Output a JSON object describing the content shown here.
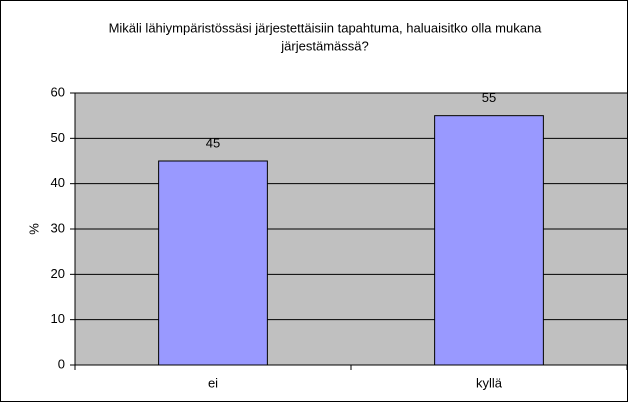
{
  "chart_data": {
    "type": "bar",
    "title": [
      "Mikäli lähiympäristössäsi järjestettäisiin tapahtuma, haluaisitko olla mukana",
      "järjestämässä?"
    ],
    "y_label": "%",
    "categories": [
      "ei",
      "kyllä"
    ],
    "values": [
      45,
      55
    ],
    "color": "#9999ff",
    "ylim": [
      0,
      60
    ],
    "yticks": [
      0,
      10,
      20,
      30,
      40,
      50,
      60
    ],
    "grid": true
  }
}
